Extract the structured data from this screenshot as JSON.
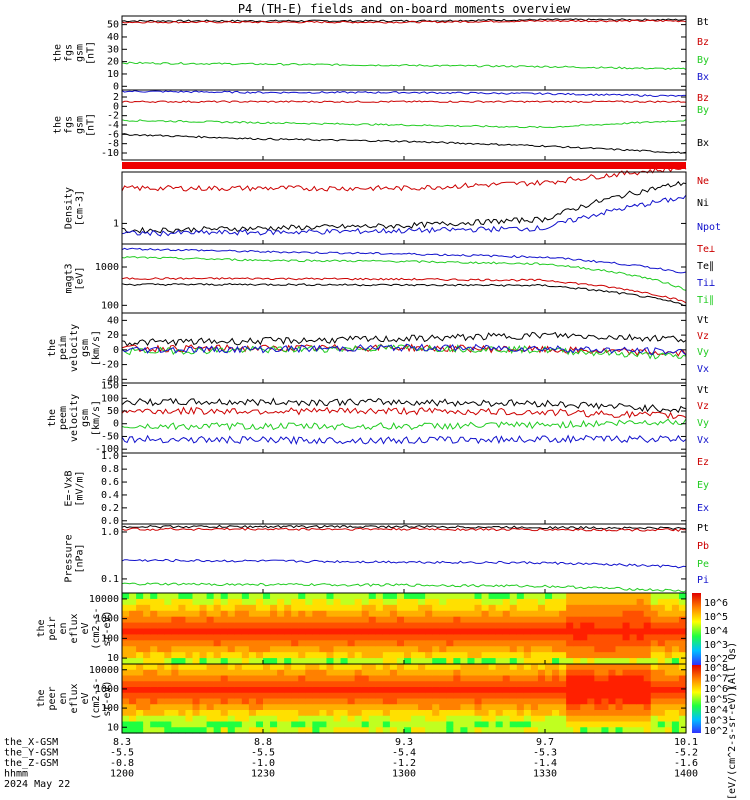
{
  "title": "P4 (TH-E) fields and on-board moments overview",
  "colors": {
    "black": "#000000",
    "red": "#cc0000",
    "green": "#22cc22",
    "blue": "#1111cc",
    "darkred": "#a00000",
    "ne": "#c80000"
  },
  "panels": [
    {
      "id": "fgs-gsm-total",
      "ylabel": [
        "the",
        "fgs",
        "gsm",
        "[nT]"
      ],
      "ticks": [
        "50",
        "40",
        "30",
        "20",
        "10",
        "0"
      ],
      "legend": [
        {
          "t": "Bt",
          "c": "black"
        },
        {
          "t": "Bz",
          "c": "red"
        },
        {
          "t": "By",
          "c": "green"
        },
        {
          "t": "Bx",
          "c": "blue"
        }
      ]
    },
    {
      "id": "fgs-gsm-detail",
      "ylabel": [
        "the",
        "fgs",
        "gsm",
        "[nT]"
      ],
      "ticks": [
        "2",
        "0",
        "-2",
        "-4",
        "-6",
        "-8",
        "-10"
      ],
      "legend": [
        {
          "t": "Bz",
          "c": "red"
        },
        {
          "t": "By",
          "c": "green"
        },
        {
          "t": "Bx",
          "c": "black"
        }
      ]
    },
    {
      "id": "density",
      "ylabel": [
        "Density",
        "[cm-3]"
      ],
      "ticks": [
        "1"
      ],
      "legend": [
        {
          "t": "Ne",
          "c": "red"
        },
        {
          "t": "Ni",
          "c": "black"
        },
        {
          "t": "Npot",
          "c": "blue"
        }
      ]
    },
    {
      "id": "temperature",
      "ylabel": [
        "magt3",
        "[eV]"
      ],
      "ticks": [
        "1000",
        "100"
      ],
      "legend": [
        {
          "t": "Te⊥",
          "c": "red"
        },
        {
          "t": "Te∥",
          "c": "black"
        },
        {
          "t": "Ti⊥",
          "c": "blue"
        },
        {
          "t": "Ti∥",
          "c": "green"
        }
      ]
    },
    {
      "id": "peim-velocity",
      "ylabel": [
        "the",
        "peim",
        "velocity",
        "gsm",
        "[km/s]"
      ],
      "ticks": [
        "40",
        "20",
        "0",
        "-20",
        "-40"
      ],
      "legend": [
        {
          "t": "Vt",
          "c": "black"
        },
        {
          "t": "Vz",
          "c": "red"
        },
        {
          "t": "Vy",
          "c": "green"
        },
        {
          "t": "Vx",
          "c": "blue"
        }
      ]
    },
    {
      "id": "peem-velocity",
      "ylabel": [
        "the",
        "peem",
        "velocity",
        "gsm",
        "[km/s]"
      ],
      "ticks": [
        "150",
        "100",
        "50",
        "0",
        "-50",
        "-100"
      ],
      "legend": [
        {
          "t": "Vt",
          "c": "black"
        },
        {
          "t": "Vz",
          "c": "red"
        },
        {
          "t": "Vy",
          "c": "green"
        },
        {
          "t": "Vx",
          "c": "blue"
        }
      ]
    },
    {
      "id": "e-field",
      "ylabel": [
        "E=-VxB",
        "[mV/m]"
      ],
      "ticks": [
        "1.0",
        "0.8",
        "0.6",
        "0.4",
        "0.2",
        "0.0"
      ],
      "legend": [
        {
          "t": "Ez",
          "c": "red"
        },
        {
          "t": "Ey",
          "c": "green"
        },
        {
          "t": "Ex",
          "c": "blue"
        }
      ]
    },
    {
      "id": "pressure",
      "ylabel": [
        "Pressure",
        "[nPa]"
      ],
      "ticks": [
        "1.0",
        "0.1"
      ],
      "legend": [
        {
          "t": "Pt",
          "c": "black"
        },
        {
          "t": "Pb",
          "c": "red"
        },
        {
          "t": "Pe",
          "c": "green"
        },
        {
          "t": "Pi",
          "c": "blue"
        }
      ]
    },
    {
      "id": "peir-spectrogram",
      "ylabel": [
        "the",
        "peir",
        "en",
        "eflux",
        "eV",
        "(cm2-s-",
        "sr-eV)"
      ],
      "ticks": [
        "10000",
        "1000",
        "100",
        "10"
      ],
      "legend": []
    },
    {
      "id": "peer-spectrogram",
      "ylabel": [
        "the",
        "peer",
        "en",
        "eflux",
        "eV",
        "(cm2-s-",
        "sr-eV)"
      ],
      "ticks": [
        "10000",
        "1000",
        "100",
        "10"
      ],
      "legend": []
    }
  ],
  "colorbar": {
    "top_ticks": [
      "10^6",
      "10^5",
      "10^4",
      "10^3",
      "10^2"
    ],
    "bottom_ticks": [
      "10^8",
      "10^7",
      "10^6",
      "10^5",
      "10^4",
      "10^3",
      "10^2"
    ],
    "label_top": "(All Qs)",
    "label": "[eV/(cm^2-s-sr-eV)]"
  },
  "x_axis": {
    "rows": [
      {
        "name": "the_X-GSM",
        "values": [
          "8.3",
          "8.8",
          "9.3",
          "9.7",
          "10.1"
        ]
      },
      {
        "name": "the_Y-GSM",
        "values": [
          "-5.5",
          "-5.5",
          "-5.4",
          "-5.3",
          "-5.2"
        ]
      },
      {
        "name": "the_Z-GSM",
        "values": [
          "-0.8",
          "-1.0",
          "-1.2",
          "-1.4",
          "-1.6"
        ]
      },
      {
        "name": "hhmm",
        "values": [
          "1200",
          "1230",
          "1300",
          "1330",
          "1400"
        ]
      }
    ],
    "date": "2024 May 22"
  },
  "chart_data": [
    {
      "type": "line",
      "title": "the fgs gsm [nT]",
      "ylim": [
        0,
        55
      ],
      "x": [
        "12:00",
        "12:30",
        "13:00",
        "13:30",
        "14:00"
      ],
      "series": [
        {
          "name": "Bt",
          "values": [
            53,
            53,
            53,
            54,
            54
          ]
        },
        {
          "name": "Bz",
          "values": [
            52,
            52,
            52,
            53,
            53
          ]
        },
        {
          "name": "By",
          "values": [
            19,
            18,
            17,
            16,
            14
          ]
        },
        {
          "name": "Bx",
          "values": [
            -4,
            -5,
            -5,
            -6,
            -8
          ]
        }
      ]
    },
    {
      "type": "line",
      "title": "the fgs gsm [nT] detail",
      "ylim": [
        -11,
        3
      ],
      "x": [
        "12:00",
        "12:30",
        "13:00",
        "13:30",
        "14:00"
      ],
      "series": [
        {
          "name": "Bz",
          "values": [
            1,
            1,
            1,
            1,
            1
          ]
        },
        {
          "name": "By",
          "values": [
            -3,
            -3.5,
            -4,
            -4.5,
            -3
          ]
        },
        {
          "name": "Bx",
          "values": [
            -6,
            -7,
            -7.5,
            -8.5,
            -10
          ]
        }
      ]
    },
    {
      "type": "line",
      "title": "Density [cm-3]",
      "log": true,
      "x": [
        "12:00",
        "12:30",
        "13:00",
        "13:30",
        "14:00"
      ],
      "series": [
        {
          "name": "Ne",
          "values": [
            2.2,
            2.2,
            2.2,
            2.5,
            3.5
          ]
        },
        {
          "name": "Ni",
          "values": [
            0.85,
            0.9,
            0.95,
            1.1,
            2.5
          ]
        },
        {
          "name": "Npot",
          "values": [
            0.8,
            0.82,
            0.85,
            0.9,
            1.8
          ]
        }
      ]
    },
    {
      "type": "line",
      "title": "magt3 [eV]",
      "log": true,
      "x": [
        "12:00",
        "12:30",
        "13:00",
        "13:30",
        "14:00"
      ],
      "series": [
        {
          "name": "Te⊥",
          "values": [
            500,
            500,
            480,
            450,
            120
          ]
        },
        {
          "name": "Te∥",
          "values": [
            350,
            350,
            340,
            330,
            100
          ]
        },
        {
          "name": "Ti⊥",
          "values": [
            3000,
            2500,
            2200,
            1800,
            700
          ]
        },
        {
          "name": "Ti∥",
          "values": [
            1800,
            1500,
            1400,
            1200,
            250
          ]
        }
      ]
    },
    {
      "type": "line",
      "title": "the peim velocity gsm [km/s]",
      "ylim": [
        -45,
        50
      ],
      "x": [
        "12:00",
        "12:30",
        "13:00",
        "13:30",
        "14:00"
      ],
      "series": [
        {
          "name": "Vt",
          "values": [
            10,
            12,
            15,
            20,
            15
          ]
        },
        {
          "name": "Vz",
          "values": [
            2,
            2,
            3,
            0,
            -5
          ]
        },
        {
          "name": "Vy",
          "values": [
            -2,
            0,
            3,
            0,
            -10
          ]
        },
        {
          "name": "Vx",
          "values": [
            0,
            1,
            3,
            2,
            -3
          ]
        }
      ]
    },
    {
      "type": "line",
      "title": "the peem velocity gsm [km/s]",
      "ylim": [
        -110,
        160
      ],
      "x": [
        "12:00",
        "12:30",
        "13:00",
        "13:30",
        "14:00"
      ],
      "series": [
        {
          "name": "Vt",
          "values": [
            85,
            85,
            85,
            80,
            55
          ]
        },
        {
          "name": "Vz",
          "values": [
            50,
            50,
            50,
            45,
            30
          ]
        },
        {
          "name": "Vy",
          "values": [
            -10,
            -10,
            -10,
            -5,
            10
          ]
        },
        {
          "name": "Vx",
          "values": [
            -60,
            -65,
            -65,
            -60,
            -60
          ]
        }
      ]
    },
    {
      "type": "line",
      "title": "E=-VxB [mV/m]",
      "ylim": [
        0,
        1
      ],
      "series": []
    },
    {
      "type": "line",
      "title": "Pressure [nPa]",
      "log": true,
      "x": [
        "12:00",
        "12:30",
        "13:00",
        "13:30",
        "14:00"
      ],
      "series": [
        {
          "name": "Pt",
          "values": [
            1.3,
            1.3,
            1.3,
            1.25,
            1.2
          ]
        },
        {
          "name": "Pb",
          "values": [
            1.15,
            1.15,
            1.15,
            1.12,
            1.1
          ]
        },
        {
          "name": "Pe",
          "values": [
            0.078,
            0.076,
            0.074,
            0.07,
            0.055
          ]
        },
        {
          "name": "Pi",
          "values": [
            0.25,
            0.24,
            0.23,
            0.22,
            0.18
          ]
        }
      ]
    },
    {
      "type": "heatmap",
      "title": "the peir en eflux",
      "ylim": [
        5,
        20000
      ],
      "log": true,
      "x": [
        "12:00",
        "12:30",
        "13:00",
        "13:30",
        "14:00"
      ]
    },
    {
      "type": "heatmap",
      "title": "the peer en eflux",
      "ylim": [
        5,
        20000
      ],
      "log": true,
      "x": [
        "12:00",
        "12:30",
        "13:00",
        "13:30",
        "14:00"
      ]
    }
  ]
}
